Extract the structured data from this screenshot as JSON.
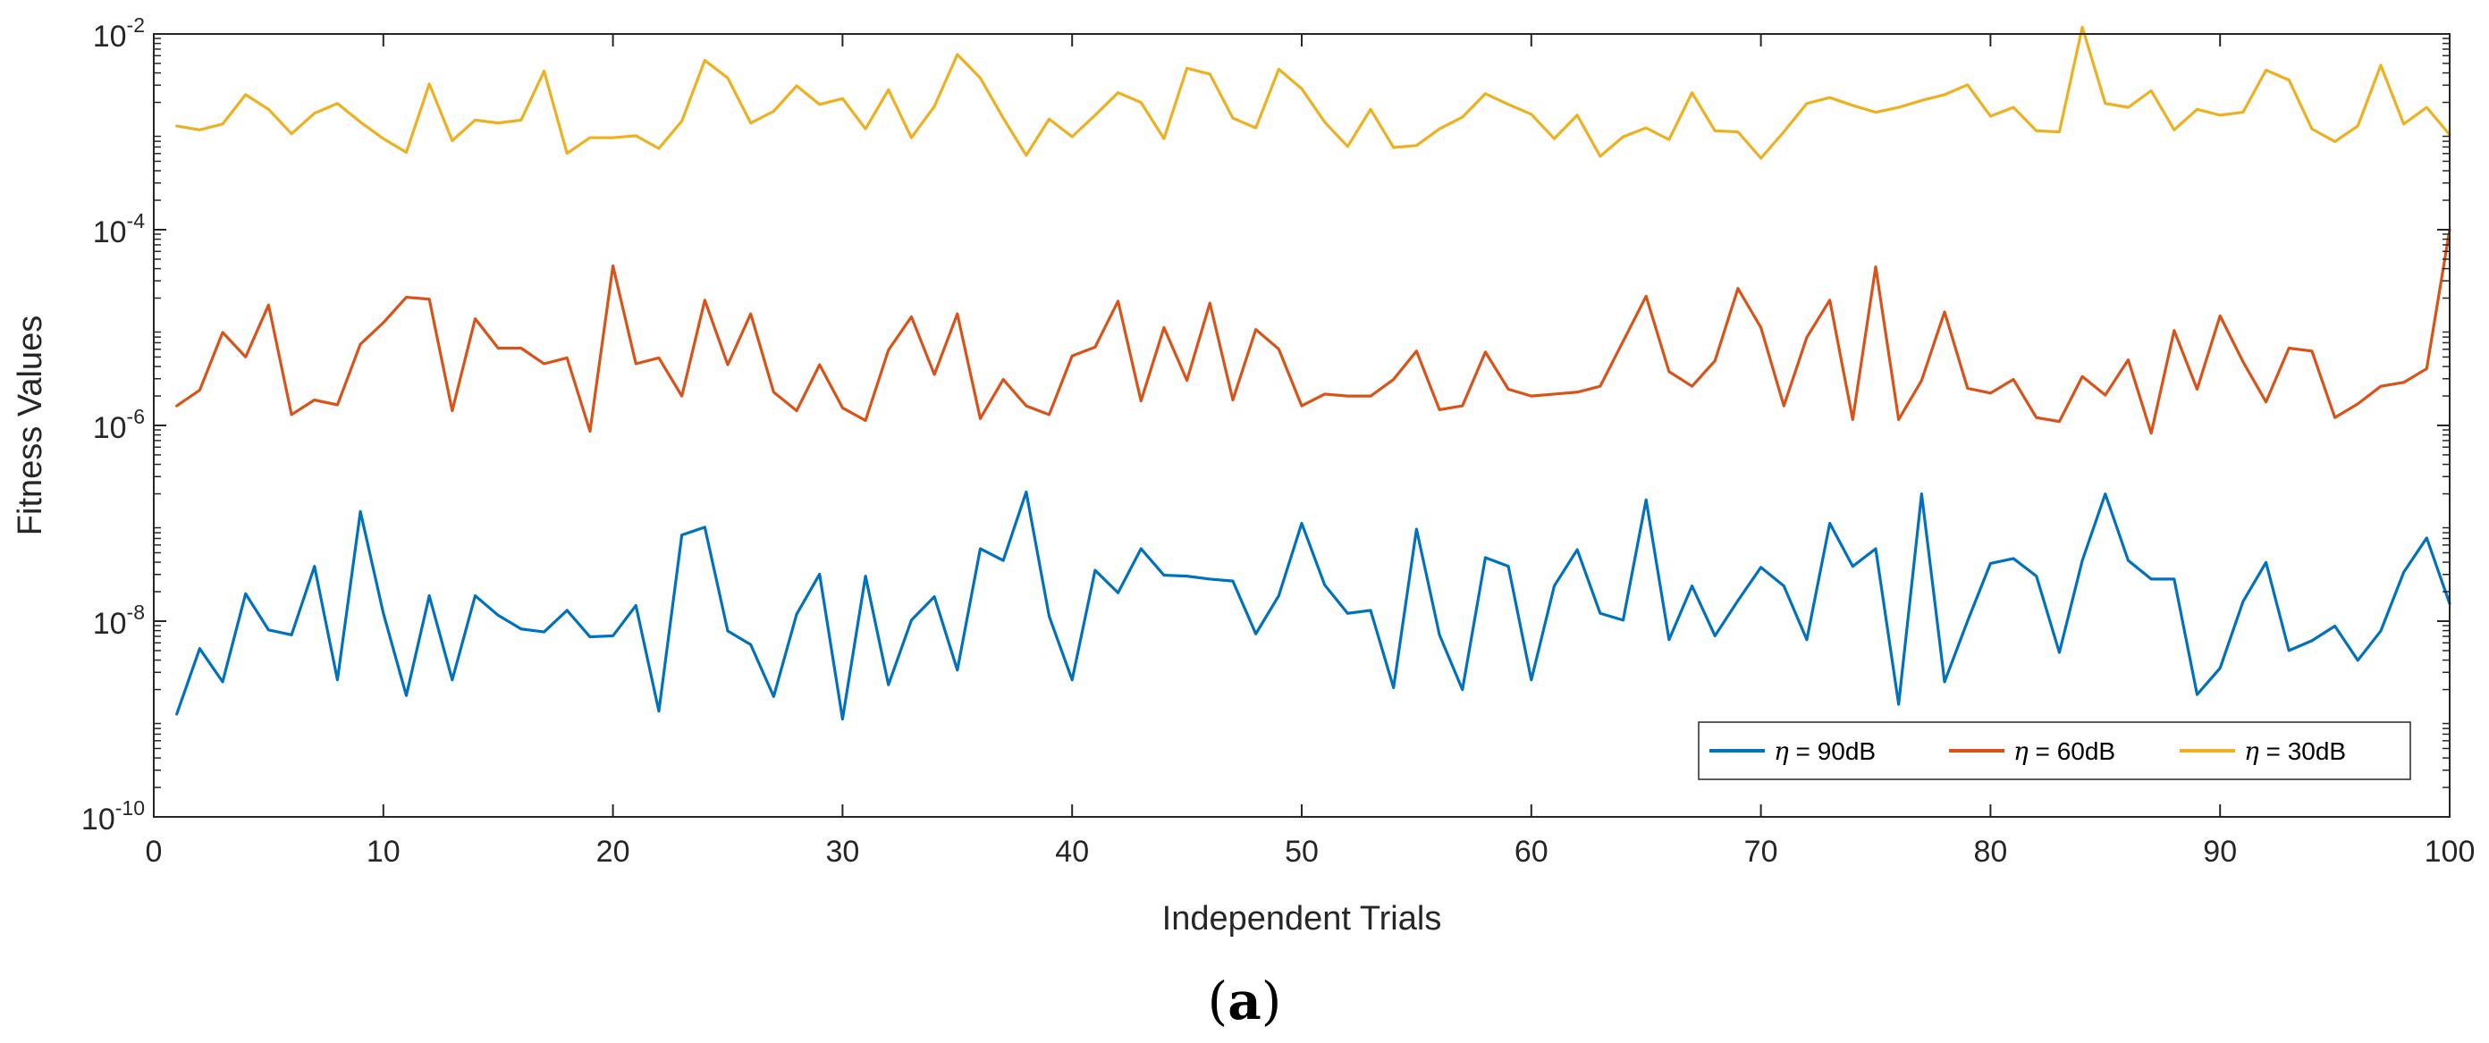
{
  "chart_data": {
    "type": "line",
    "title": "",
    "xlabel": "Independent Trials",
    "ylabel": "Fitness Values",
    "xlim": [
      0,
      100
    ],
    "ylim_log10": [
      -10,
      -2
    ],
    "yscale": "log",
    "grid": false,
    "legend_position": "bottom-right",
    "legend_orientation": "horizontal",
    "x_ticks": [
      {
        "value": 0,
        "label": "0"
      },
      {
        "value": 10,
        "label": "10"
      },
      {
        "value": 20,
        "label": "20"
      },
      {
        "value": 30,
        "label": "30"
      },
      {
        "value": 40,
        "label": "40"
      },
      {
        "value": 50,
        "label": "50"
      },
      {
        "value": 60,
        "label": "60"
      },
      {
        "value": 70,
        "label": "70"
      },
      {
        "value": 80,
        "label": "80"
      },
      {
        "value": 90,
        "label": "90"
      },
      {
        "value": 100,
        "label": "100"
      }
    ],
    "y_ticks": [
      {
        "exp": -10,
        "base": "10",
        "sup": "-10"
      },
      {
        "exp": -8,
        "base": "10",
        "sup": "-8"
      },
      {
        "exp": -6,
        "base": "10",
        "sup": "-6"
      },
      {
        "exp": -4,
        "base": "10",
        "sup": "-4"
      },
      {
        "exp": -2,
        "base": "10",
        "sup": "-2"
      }
    ],
    "panel_label": {
      "open": "(",
      "letter": "a",
      "close": ")"
    },
    "series": [
      {
        "name": "η = 90dB",
        "legend_symbol": "η",
        "legend_rest": " = 90dB",
        "color": "#0072BD",
        "x_start": 1,
        "log10_values": [
          -8.95,
          -8.28,
          -8.62,
          -7.72,
          -8.09,
          -8.14,
          -7.44,
          -8.6,
          -6.88,
          -7.92,
          -8.76,
          -7.74,
          -8.6,
          -7.74,
          -7.94,
          -8.08,
          -8.11,
          -7.89,
          -8.16,
          -8.15,
          -7.84,
          -8.92,
          -7.12,
          -7.04,
          -8.1,
          -8.24,
          -8.77,
          -7.93,
          -7.52,
          -9.0,
          -7.54,
          -8.65,
          -7.99,
          -7.75,
          -8.5,
          -7.26,
          -7.38,
          -6.68,
          -7.95,
          -8.6,
          -7.48,
          -7.71,
          -7.26,
          -7.53,
          -7.54,
          -7.57,
          -7.59,
          -8.13,
          -7.74,
          -7.0,
          -7.63,
          -7.92,
          -7.89,
          -8.68,
          -7.06,
          -8.14,
          -8.7,
          -7.35,
          -7.44,
          -8.6,
          -7.64,
          -7.27,
          -7.92,
          -7.99,
          -6.76,
          -8.19,
          -7.64,
          -8.15,
          -7.79,
          -7.45,
          -7.64,
          -8.19,
          -7.0,
          -7.44,
          -7.26,
          -8.85,
          -6.7,
          -8.62,
          -8.0,
          -7.41,
          -7.36,
          -7.54,
          -8.32,
          -7.38,
          -6.7,
          -7.38,
          -7.57,
          -7.57,
          -8.75,
          -8.48,
          -7.8,
          -7.4,
          -8.3,
          -8.2,
          -8.05,
          -8.4,
          -8.1,
          -7.5,
          -7.15,
          -7.82
        ]
      },
      {
        "name": "η = 60dB",
        "legend_symbol": "η",
        "legend_rest": " = 60dB",
        "color": "#D95319",
        "x_start": 1,
        "log10_values": [
          -5.8,
          -5.64,
          -5.05,
          -5.3,
          -4.77,
          -5.89,
          -5.74,
          -5.79,
          -5.17,
          -4.95,
          -4.69,
          -4.71,
          -5.85,
          -4.91,
          -5.21,
          -5.21,
          -5.37,
          -5.31,
          -6.06,
          -4.37,
          -5.37,
          -5.31,
          -5.7,
          -4.72,
          -5.38,
          -4.86,
          -5.66,
          -5.85,
          -5.38,
          -5.82,
          -5.95,
          -5.23,
          -4.89,
          -5.48,
          -4.86,
          -5.93,
          -5.53,
          -5.8,
          -5.89,
          -5.29,
          -5.2,
          -4.73,
          -5.75,
          -5.0,
          -5.54,
          -4.75,
          -5.74,
          -5.02,
          -5.22,
          -5.8,
          -5.68,
          -5.7,
          -5.7,
          -5.53,
          -5.24,
          -5.84,
          -5.8,
          -5.25,
          -5.63,
          -5.7,
          -5.68,
          -5.66,
          -5.6,
          -5.14,
          -4.68,
          -5.45,
          -5.6,
          -5.34,
          -4.6,
          -5.0,
          -5.8,
          -5.1,
          -4.72,
          -5.94,
          -4.38,
          -5.94,
          -5.54,
          -4.84,
          -5.62,
          -5.67,
          -5.53,
          -5.92,
          -5.96,
          -5.5,
          -5.69,
          -5.33,
          -6.08,
          -5.03,
          -5.63,
          -4.88,
          -5.35,
          -5.76,
          -5.21,
          -5.24,
          -5.92,
          -5.78,
          -5.6,
          -5.56,
          -5.42,
          -4.0
        ]
      },
      {
        "name": "η = 30dB",
        "legend_symbol": "η",
        "legend_rest": " = 30dB",
        "color": "#EDB120",
        "x_start": 1,
        "log10_values": [
          -2.94,
          -2.98,
          -2.92,
          -2.62,
          -2.77,
          -3.02,
          -2.81,
          -2.71,
          -2.9,
          -3.07,
          -3.21,
          -2.51,
          -3.09,
          -2.88,
          -2.91,
          -2.88,
          -2.38,
          -3.22,
          -3.06,
          -3.06,
          -3.04,
          -3.17,
          -2.89,
          -2.27,
          -2.45,
          -2.91,
          -2.79,
          -2.53,
          -2.72,
          -2.66,
          -2.97,
          -2.57,
          -3.06,
          -2.74,
          -2.21,
          -2.45,
          -2.86,
          -3.24,
          -2.87,
          -3.05,
          -2.83,
          -2.6,
          -2.7,
          -3.07,
          -2.35,
          -2.41,
          -2.86,
          -2.96,
          -2.36,
          -2.56,
          -2.9,
          -3.15,
          -2.77,
          -3.16,
          -3.14,
          -2.97,
          -2.85,
          -2.61,
          -2.72,
          -2.82,
          -3.07,
          -2.83,
          -3.25,
          -3.05,
          -2.96,
          -3.08,
          -2.6,
          -2.99,
          -3.0,
          -3.27,
          -3.0,
          -2.71,
          -2.65,
          -2.73,
          -2.8,
          -2.75,
          -2.68,
          -2.62,
          -2.52,
          -2.84,
          -2.75,
          -2.99,
          -3.0,
          -1.93,
          -2.71,
          -2.75,
          -2.58,
          -2.98,
          -2.77,
          -2.83,
          -2.8,
          -2.37,
          -2.47,
          -2.97,
          -3.1,
          -2.94,
          -2.32,
          -2.92,
          -2.75,
          -3.03
        ]
      }
    ]
  }
}
